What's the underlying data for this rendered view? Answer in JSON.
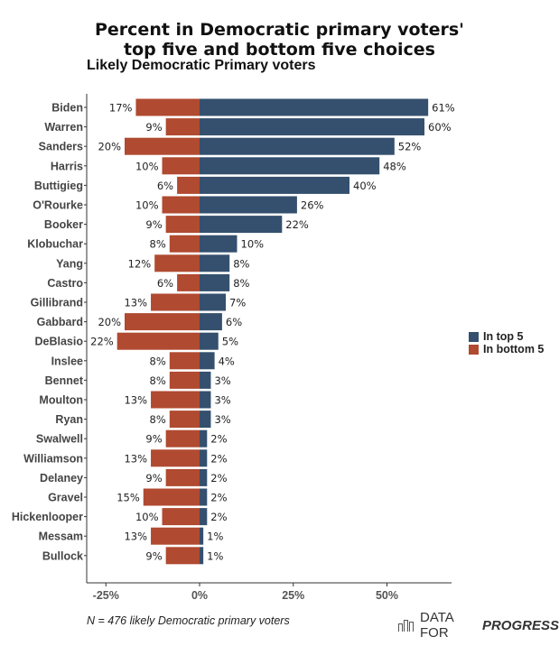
{
  "title_line1": "Percent in Democratic primary voters'",
  "title_line2": "top five and bottom five choices",
  "subtitle": "Likely Democratic Primary voters",
  "footnote": "N = 476 likely Democratic primary voters",
  "brand": {
    "prefix": "DATA FOR",
    "suffix": "PROGRESS",
    "icon": "bar-chart-icon"
  },
  "colors": {
    "top5": "#34506e",
    "bottom5": "#b04a30"
  },
  "chart_data": {
    "type": "bar",
    "orientation": "horizontal-diverging",
    "categories": [
      "Biden",
      "Warren",
      "Sanders",
      "Harris",
      "Buttigieg",
      "O'Rourke",
      "Booker",
      "Klobuchar",
      "Yang",
      "Castro",
      "Gillibrand",
      "Gabbard",
      "DeBlasio",
      "Inslee",
      "Bennet",
      "Moulton",
      "Ryan",
      "Swalwell",
      "Williamson",
      "Delaney",
      "Gravel",
      "Hickenlooper",
      "Messam",
      "Bullock"
    ],
    "series": [
      {
        "name": "In top 5",
        "values": [
          61,
          60,
          52,
          48,
          40,
          26,
          22,
          10,
          8,
          8,
          7,
          6,
          5,
          4,
          3,
          3,
          3,
          2,
          2,
          2,
          2,
          2,
          1,
          1
        ]
      },
      {
        "name": "In bottom 5",
        "values": [
          17,
          9,
          20,
          10,
          6,
          10,
          9,
          8,
          12,
          6,
          13,
          20,
          22,
          8,
          8,
          13,
          8,
          9,
          13,
          9,
          15,
          10,
          13,
          9
        ]
      }
    ],
    "value_suffix": "%",
    "xlim": [
      -30,
      66
    ],
    "xticks": [
      -25,
      0,
      25,
      50
    ],
    "xtick_labels": [
      "-25%",
      "0%",
      "25%",
      "50%"
    ],
    "legend_position": "right",
    "grid": false
  }
}
